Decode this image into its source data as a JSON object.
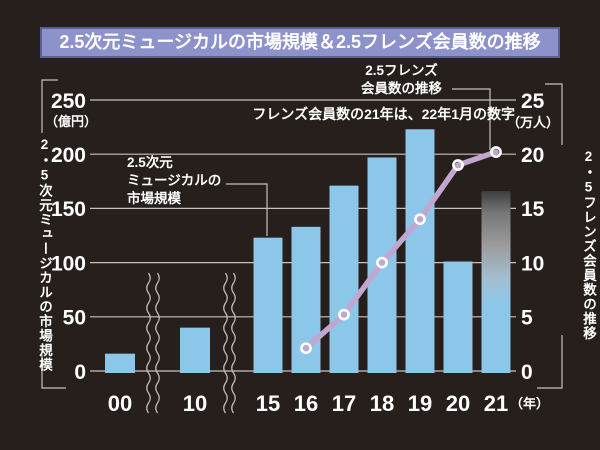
{
  "title": "2.5次元ミュージカルの市場規模＆2.5フレンズ会員数の推移",
  "axes": {
    "left": {
      "unit": "（億円）",
      "title": "2・5次元ミュージカルの市場規模",
      "ticks": [
        250,
        200,
        150,
        100,
        50,
        0
      ]
    },
    "right": {
      "unit": "（万人）",
      "title": "2・5フレンズ会員数の推移",
      "ticks": [
        25,
        20,
        15,
        10,
        5,
        0
      ]
    },
    "x": {
      "unit": "（年）",
      "labels": [
        "00",
        "10",
        "15",
        "16",
        "17",
        "18",
        "19",
        "20",
        "21"
      ]
    }
  },
  "annotations": {
    "market_label": "2.5次元\nミュージカルの\n市場規模",
    "friends_label": "2.5フレンズ\n会員数の推移",
    "note": "フレンズ会員数の21年は、22年1月の数字"
  },
  "chart_data": {
    "type": "bar+line",
    "categories": [
      "00",
      "10",
      "15",
      "16",
      "17",
      "18",
      "19",
      "20",
      "21"
    ],
    "series": [
      {
        "name": "2.5次元ミュージカルの市場規模",
        "type": "bar",
        "axis": "left",
        "unit": "億円",
        "values": [
          16,
          40,
          123,
          133,
          171,
          197,
          223,
          101,
          166
        ],
        "last_bar_style": "gray-gradient-top"
      },
      {
        "name": "2.5フレンズ会員数",
        "type": "line",
        "axis": "right",
        "unit": "万人",
        "values": [
          null,
          null,
          null,
          2.1,
          5.2,
          10,
          14,
          19,
          20.2
        ]
      }
    ],
    "left_ylim": [
      0,
      250
    ],
    "right_ylim": [
      0,
      25
    ],
    "grid": "horizontal",
    "axis_breaks": [
      "between 00 and 10",
      "between 10 and 15"
    ],
    "legend_position": "annotations-with-leader-lines"
  },
  "colors": {
    "background": "#261f1c",
    "bar_blue": "#8cc7e9",
    "bar21_gradient": [
      "#3e3e3e",
      "#777777",
      "#9c9c9c",
      "#a3bed2",
      "#8cc7e9"
    ],
    "line_purple": "#c1a6d0",
    "marker_ring": "#ffffff",
    "grid_line": "#c6c2bd",
    "title_bg": "#8d92cb",
    "title_border": "#5a5f94",
    "text": "#ffffff"
  }
}
